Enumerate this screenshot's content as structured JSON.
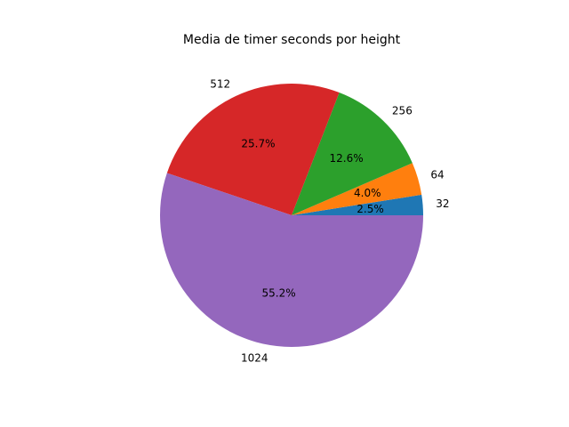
{
  "chart_data": {
    "type": "pie",
    "title": "Media de timer seconds por height",
    "categories": [
      "32",
      "64",
      "256",
      "512",
      "1024"
    ],
    "values": [
      2.5,
      4.0,
      12.6,
      25.7,
      55.2
    ],
    "percent_labels": [
      "2.5%",
      "4.0%",
      "12.6%",
      "25.7%",
      "55.2%"
    ],
    "colors": [
      "#1f77b4",
      "#ff7f0e",
      "#2ca02c",
      "#d62728",
      "#9467bd"
    ],
    "start_angle_deg": 0,
    "direction": "counterclockwise",
    "legend": "none"
  }
}
